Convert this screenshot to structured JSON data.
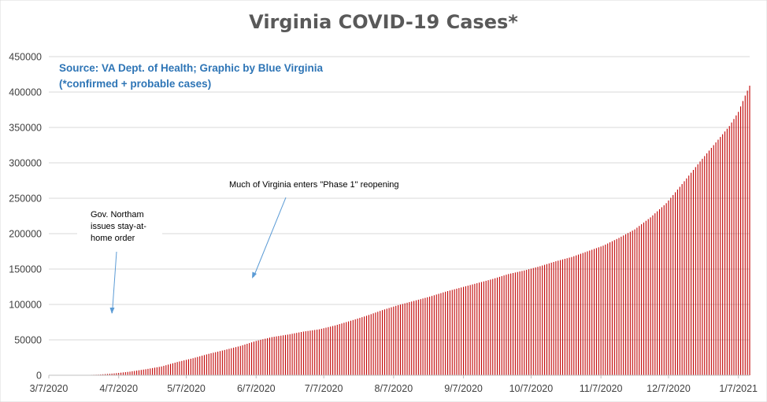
{
  "chart_data": {
    "type": "bar",
    "title": "Virginia COVID-19 Cases*",
    "subtitle_lines": [
      "Source: VA Dept. of Health; Graphic by Blue Virginia",
      "(*confirmed + probable cases)"
    ],
    "xlabel": "",
    "ylabel": "",
    "x_date_range": [
      "2020-03-07",
      "2021-01-12"
    ],
    "ylim": [
      0,
      450000
    ],
    "y_ticks": [
      0,
      50000,
      100000,
      150000,
      200000,
      250000,
      300000,
      350000,
      400000,
      450000
    ],
    "x_tick_labels": [
      "3/7/2020",
      "4/7/2020",
      "5/7/2020",
      "6/7/2020",
      "7/7/2020",
      "8/7/2020",
      "9/7/2020",
      "10/7/2020",
      "11/7/2020",
      "12/7/2020",
      "1/7/2021"
    ],
    "bar_color": "#c00000",
    "gridlines": true,
    "legend": "none",
    "series": [
      {
        "name": "Cases",
        "points": [
          [
            "2020-03-07",
            2
          ],
          [
            "2020-03-15",
            45
          ],
          [
            "2020-03-22",
            220
          ],
          [
            "2020-03-29",
            900
          ],
          [
            "2020-04-05",
            2600
          ],
          [
            "2020-04-12",
            5100
          ],
          [
            "2020-04-19",
            8500
          ],
          [
            "2020-04-26",
            12400
          ],
          [
            "2020-05-03",
            18700
          ],
          [
            "2020-05-10",
            24100
          ],
          [
            "2020-05-17",
            30300
          ],
          [
            "2020-05-24",
            35700
          ],
          [
            "2020-05-31",
            41400
          ],
          [
            "2020-06-07",
            48500
          ],
          [
            "2020-06-14",
            53900
          ],
          [
            "2020-06-21",
            57400
          ],
          [
            "2020-06-28",
            61700
          ],
          [
            "2020-07-05",
            64900
          ],
          [
            "2020-07-12",
            70300
          ],
          [
            "2020-07-19",
            77000
          ],
          [
            "2020-07-26",
            84000
          ],
          [
            "2020-08-02",
            92000
          ],
          [
            "2020-08-09",
            99000
          ],
          [
            "2020-08-16",
            105000
          ],
          [
            "2020-08-23",
            111000
          ],
          [
            "2020-08-30",
            118000
          ],
          [
            "2020-09-06",
            124000
          ],
          [
            "2020-09-13",
            130000
          ],
          [
            "2020-09-20",
            136000
          ],
          [
            "2020-09-27",
            143000
          ],
          [
            "2020-10-04",
            148000
          ],
          [
            "2020-10-11",
            154000
          ],
          [
            "2020-10-18",
            161000
          ],
          [
            "2020-10-25",
            167000
          ],
          [
            "2020-11-01",
            175000
          ],
          [
            "2020-11-08",
            183000
          ],
          [
            "2020-11-15",
            194000
          ],
          [
            "2020-11-22",
            206000
          ],
          [
            "2020-11-29",
            223000
          ],
          [
            "2020-12-06",
            243000
          ],
          [
            "2020-12-13",
            270000
          ],
          [
            "2020-12-20",
            298000
          ],
          [
            "2020-12-27",
            325000
          ],
          [
            "2021-01-03",
            352000
          ],
          [
            "2021-01-07",
            372000
          ],
          [
            "2021-01-10",
            395000
          ],
          [
            "2021-01-12",
            409000
          ]
        ]
      }
    ],
    "annotations": [
      {
        "text_lines": [
          "Gov. Northam",
          "issues stay-at-",
          "home order"
        ],
        "points_to": [
          "2020-03-30",
          0
        ]
      },
      {
        "text_lines": [
          "Much of Virginia enters \"Phase 1\" reopening"
        ],
        "points_to": [
          "2020-05-15",
          0
        ]
      }
    ]
  }
}
